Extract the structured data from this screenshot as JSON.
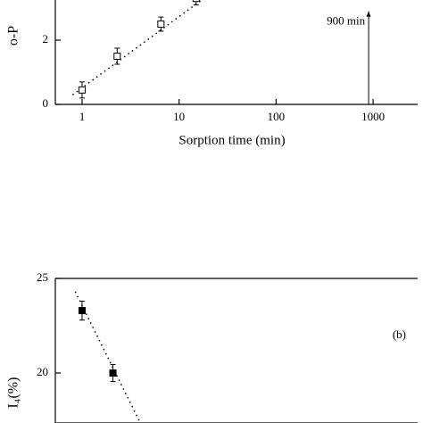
{
  "chart_data": [
    {
      "type": "scatter",
      "ylabel": "o-P",
      "xlabel": "Sorption time (min)",
      "xlog": true,
      "xlim": [
        0.53,
        2880
      ],
      "xticks": [
        1,
        10,
        100,
        1000
      ],
      "ylim": [
        0,
        3.25
      ],
      "yticks": [
        0,
        2
      ],
      "marker": "open",
      "color": "#000000",
      "series": [
        {
          "x": [
            1,
            2.3,
            6.5,
            15
          ],
          "values": [
            0.45,
            1.5,
            2.5,
            3.3
          ],
          "errors": [
            0.25,
            0.25,
            0.22,
            0.2
          ]
        }
      ],
      "trend": {
        "x": [
          0.8,
          20
        ],
        "values": [
          0.3,
          3.4
        ]
      },
      "annotation": {
        "text": "900 min",
        "x": 900,
        "y": [
          0,
          2.9
        ]
      }
    },
    {
      "type": "scatter",
      "ylabel": "I₄(%)",
      "panel": "(b)",
      "xlog": true,
      "xlim": [
        0.53,
        2880
      ],
      "ylim": [
        17.36,
        25
      ],
      "yticks": [
        20,
        25
      ],
      "marker": "filled",
      "color": "#000000",
      "series": [
        {
          "x": [
            1,
            2.08
          ],
          "values": [
            23.3,
            20.0
          ],
          "errors": [
            0.5,
            0.45
          ]
        }
      ],
      "trend": {
        "x": [
          0.85,
          3.95
        ],
        "values": [
          24.3,
          17.4
        ]
      }
    }
  ]
}
